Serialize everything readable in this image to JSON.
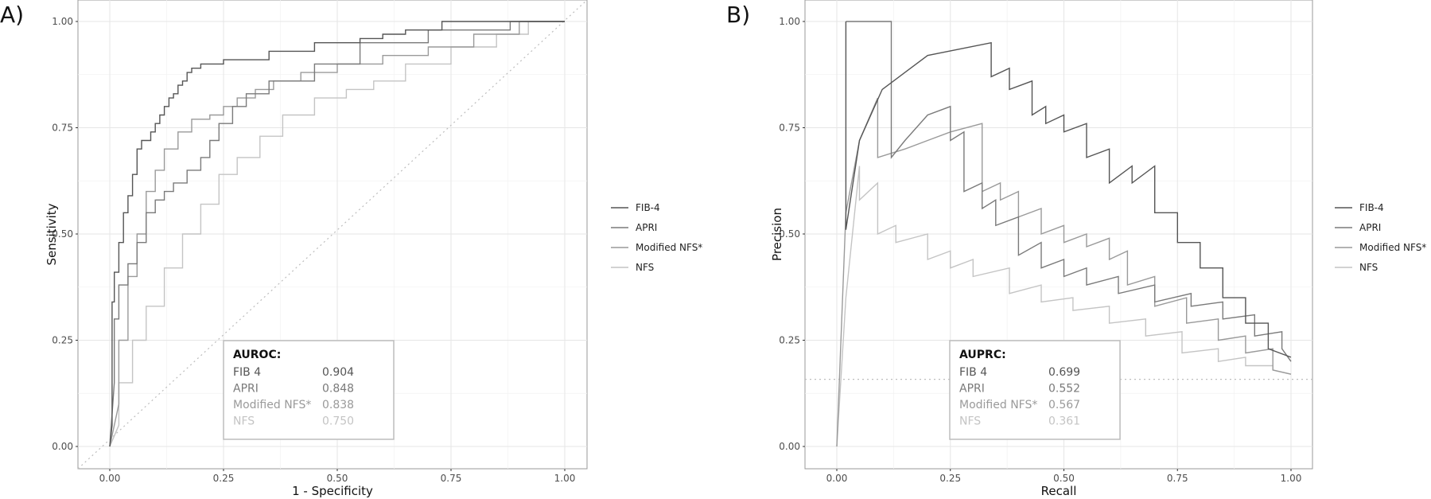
{
  "chart_data": [
    {
      "type": "line",
      "panel_label": "A)",
      "xlabel": "1 - Specificity",
      "ylabel": "Sensitivity",
      "xlim": [
        0,
        1
      ],
      "ylim": [
        0,
        1
      ],
      "ticks": [
        "0.00",
        "0.25",
        "0.50",
        "0.75",
        "1.00"
      ],
      "grid": true,
      "legend_position": "right",
      "diagonal_reference": true,
      "series": [
        {
          "name": "FIB-4",
          "color": "#555555",
          "x": [
            0,
            0.005,
            0.005,
            0.01,
            0.01,
            0.02,
            0.02,
            0.03,
            0.03,
            0.04,
            0.04,
            0.05,
            0.05,
            0.06,
            0.06,
            0.07,
            0.07,
            0.09,
            0.09,
            0.1,
            0.1,
            0.11,
            0.11,
            0.12,
            0.12,
            0.13,
            0.13,
            0.14,
            0.14,
            0.15,
            0.15,
            0.16,
            0.16,
            0.17,
            0.17,
            0.18,
            0.18,
            0.2,
            0.2,
            0.23,
            0.23,
            0.25,
            0.25,
            0.35,
            0.35,
            0.45,
            0.45,
            0.55,
            0.55,
            0.6,
            0.6,
            0.65,
            0.65,
            0.73,
            0.73,
            1
          ],
          "y": [
            0,
            0.05,
            0.34,
            0.34,
            0.41,
            0.41,
            0.48,
            0.48,
            0.55,
            0.55,
            0.59,
            0.59,
            0.64,
            0.64,
            0.7,
            0.7,
            0.72,
            0.72,
            0.74,
            0.74,
            0.76,
            0.76,
            0.78,
            0.78,
            0.8,
            0.8,
            0.82,
            0.82,
            0.83,
            0.83,
            0.85,
            0.85,
            0.86,
            0.86,
            0.88,
            0.88,
            0.89,
            0.89,
            0.9,
            0.9,
            0.9,
            0.9,
            0.91,
            0.91,
            0.93,
            0.93,
            0.95,
            0.95,
            0.96,
            0.96,
            0.97,
            0.97,
            0.98,
            0.98,
            1,
            1
          ]
        },
        {
          "name": "APRI",
          "color": "#7a7a7a",
          "x": [
            0,
            0.01,
            0.01,
            0.02,
            0.02,
            0.04,
            0.04,
            0.06,
            0.06,
            0.08,
            0.08,
            0.1,
            0.1,
            0.12,
            0.12,
            0.14,
            0.14,
            0.17,
            0.17,
            0.2,
            0.2,
            0.22,
            0.22,
            0.24,
            0.24,
            0.27,
            0.27,
            0.3,
            0.3,
            0.35,
            0.35,
            0.45,
            0.45,
            0.55,
            0.55,
            0.7,
            0.7,
            0.88,
            0.88,
            1
          ],
          "y": [
            0,
            0.15,
            0.3,
            0.3,
            0.38,
            0.38,
            0.43,
            0.43,
            0.48,
            0.48,
            0.55,
            0.55,
            0.58,
            0.58,
            0.6,
            0.6,
            0.62,
            0.62,
            0.65,
            0.65,
            0.68,
            0.68,
            0.72,
            0.72,
            0.76,
            0.76,
            0.8,
            0.8,
            0.83,
            0.83,
            0.86,
            0.86,
            0.9,
            0.9,
            0.95,
            0.95,
            0.98,
            0.98,
            1,
            1
          ]
        },
        {
          "name": "Modified NFS*",
          "color": "#9a9a9a",
          "x": [
            0,
            0.02,
            0.02,
            0.04,
            0.04,
            0.06,
            0.06,
            0.08,
            0.08,
            0.1,
            0.1,
            0.12,
            0.12,
            0.15,
            0.15,
            0.18,
            0.18,
            0.22,
            0.22,
            0.25,
            0.25,
            0.28,
            0.28,
            0.32,
            0.32,
            0.36,
            0.36,
            0.42,
            0.42,
            0.5,
            0.5,
            0.6,
            0.6,
            0.7,
            0.7,
            0.8,
            0.8,
            0.9,
            0.9,
            1
          ],
          "y": [
            0,
            0.1,
            0.25,
            0.25,
            0.4,
            0.4,
            0.5,
            0.5,
            0.6,
            0.6,
            0.65,
            0.65,
            0.7,
            0.7,
            0.74,
            0.74,
            0.77,
            0.77,
            0.78,
            0.78,
            0.8,
            0.8,
            0.82,
            0.82,
            0.84,
            0.84,
            0.86,
            0.86,
            0.88,
            0.88,
            0.9,
            0.9,
            0.92,
            0.92,
            0.94,
            0.94,
            0.97,
            0.97,
            1,
            1
          ]
        },
        {
          "name": "NFS",
          "color": "#c4c4c4",
          "x": [
            0,
            0.02,
            0.02,
            0.05,
            0.05,
            0.08,
            0.08,
            0.12,
            0.12,
            0.16,
            0.16,
            0.2,
            0.2,
            0.24,
            0.24,
            0.28,
            0.28,
            0.33,
            0.33,
            0.38,
            0.38,
            0.45,
            0.45,
            0.52,
            0.52,
            0.58,
            0.58,
            0.65,
            0.65,
            0.75,
            0.75,
            0.85,
            0.85,
            0.92,
            0.92,
            1
          ],
          "y": [
            0,
            0.05,
            0.15,
            0.15,
            0.25,
            0.25,
            0.33,
            0.33,
            0.42,
            0.42,
            0.5,
            0.5,
            0.57,
            0.57,
            0.64,
            0.64,
            0.68,
            0.68,
            0.73,
            0.73,
            0.78,
            0.78,
            0.82,
            0.82,
            0.84,
            0.84,
            0.86,
            0.86,
            0.9,
            0.9,
            0.94,
            0.94,
            0.97,
            0.97,
            1,
            1
          ]
        }
      ],
      "annotation": {
        "title": "AUROC:",
        "rows": [
          {
            "label": "FIB 4",
            "value": "0.904",
            "color": "#555555"
          },
          {
            "label": "APRI",
            "value": "0.848",
            "color": "#7a7a7a"
          },
          {
            "label": "Modified NFS*",
            "value": "0.838",
            "color": "#9a9a9a"
          },
          {
            "label": "NFS",
            "value": "0.750",
            "color": "#c4c4c4"
          }
        ]
      }
    },
    {
      "type": "line",
      "panel_label": "B)",
      "xlabel": "Recall",
      "ylabel": "Precision",
      "xlim": [
        0,
        1
      ],
      "ylim": [
        0,
        1
      ],
      "ticks": [
        "0.00",
        "0.25",
        "0.50",
        "0.75",
        "1.00"
      ],
      "grid": true,
      "legend_position": "right",
      "baseline": 0.158,
      "series": [
        {
          "name": "FIB-4",
          "color": "#555555",
          "x": [
            0.02,
            0.02,
            0.02,
            0.05,
            0.1,
            0.2,
            0.34,
            0.34,
            0.38,
            0.38,
            0.43,
            0.43,
            0.46,
            0.46,
            0.5,
            0.5,
            0.55,
            0.55,
            0.6,
            0.6,
            0.65,
            0.65,
            0.7,
            0.7,
            0.75,
            0.75,
            0.8,
            0.8,
            0.85,
            0.85,
            0.9,
            0.9,
            0.95,
            0.95,
            1
          ],
          "y": [
            1,
            0.51,
            0.51,
            0.72,
            0.84,
            0.92,
            0.95,
            0.87,
            0.89,
            0.84,
            0.86,
            0.78,
            0.8,
            0.76,
            0.78,
            0.74,
            0.76,
            0.68,
            0.7,
            0.62,
            0.66,
            0.62,
            0.66,
            0.55,
            0.55,
            0.48,
            0.48,
            0.42,
            0.42,
            0.35,
            0.35,
            0.29,
            0.29,
            0.23,
            0.21
          ]
        },
        {
          "name": "APRI",
          "color": "#7a7a7a",
          "x": [
            0.02,
            0.02,
            0.12,
            0.12,
            0.15,
            0.2,
            0.25,
            0.25,
            0.28,
            0.28,
            0.32,
            0.32,
            0.35,
            0.35,
            0.4,
            0.4,
            0.45,
            0.45,
            0.5,
            0.5,
            0.55,
            0.55,
            0.62,
            0.62,
            0.7,
            0.7,
            0.78,
            0.78,
            0.85,
            0.85,
            0.92,
            0.92,
            0.98,
            0.98,
            1
          ],
          "y": [
            1,
            1,
            1,
            0.68,
            0.72,
            0.78,
            0.8,
            0.72,
            0.74,
            0.6,
            0.62,
            0.56,
            0.58,
            0.52,
            0.54,
            0.45,
            0.48,
            0.42,
            0.44,
            0.4,
            0.42,
            0.38,
            0.4,
            0.36,
            0.38,
            0.34,
            0.36,
            0.33,
            0.34,
            0.3,
            0.31,
            0.26,
            0.27,
            0.23,
            0.2
          ]
        },
        {
          "name": "Modified NFS*",
          "color": "#9a9a9a",
          "x": [
            0,
            0.02,
            0.05,
            0.09,
            0.09,
            0.15,
            0.2,
            0.25,
            0.32,
            0.32,
            0.36,
            0.36,
            0.4,
            0.4,
            0.45,
            0.45,
            0.5,
            0.5,
            0.55,
            0.55,
            0.6,
            0.6,
            0.64,
            0.64,
            0.7,
            0.7,
            0.77,
            0.77,
            0.84,
            0.84,
            0.9,
            0.9,
            0.96,
            0.96,
            1
          ],
          "y": [
            0,
            0.55,
            0.72,
            0.82,
            0.68,
            0.7,
            0.72,
            0.74,
            0.76,
            0.6,
            0.62,
            0.58,
            0.6,
            0.54,
            0.56,
            0.5,
            0.52,
            0.48,
            0.5,
            0.47,
            0.49,
            0.44,
            0.46,
            0.38,
            0.4,
            0.33,
            0.35,
            0.29,
            0.3,
            0.25,
            0.26,
            0.22,
            0.23,
            0.18,
            0.17
          ]
        },
        {
          "name": "NFS",
          "color": "#c4c4c4",
          "x": [
            0,
            0.02,
            0.05,
            0.05,
            0.09,
            0.09,
            0.13,
            0.13,
            0.2,
            0.2,
            0.25,
            0.25,
            0.3,
            0.3,
            0.38,
            0.38,
            0.45,
            0.45,
            0.52,
            0.52,
            0.6,
            0.6,
            0.68,
            0.68,
            0.76,
            0.76,
            0.84,
            0.84,
            0.9,
            0.9,
            0.96,
            0.96,
            1
          ],
          "y": [
            0,
            0.35,
            0.66,
            0.58,
            0.62,
            0.5,
            0.52,
            0.48,
            0.5,
            0.44,
            0.46,
            0.42,
            0.44,
            0.4,
            0.42,
            0.36,
            0.38,
            0.34,
            0.35,
            0.32,
            0.33,
            0.29,
            0.3,
            0.26,
            0.27,
            0.22,
            0.23,
            0.2,
            0.21,
            0.19,
            0.19,
            0.18,
            0.17
          ]
        }
      ],
      "annotation": {
        "title": "AUPRC:",
        "rows": [
          {
            "label": "FIB 4",
            "value": "0.699",
            "color": "#555555"
          },
          {
            "label": "APRI",
            "value": "0.552",
            "color": "#7a7a7a"
          },
          {
            "label": "Modified NFS*",
            "value": "0.567",
            "color": "#9a9a9a"
          },
          {
            "label": "NFS",
            "value": "0.361",
            "color": "#c4c4c4"
          }
        ]
      }
    }
  ]
}
